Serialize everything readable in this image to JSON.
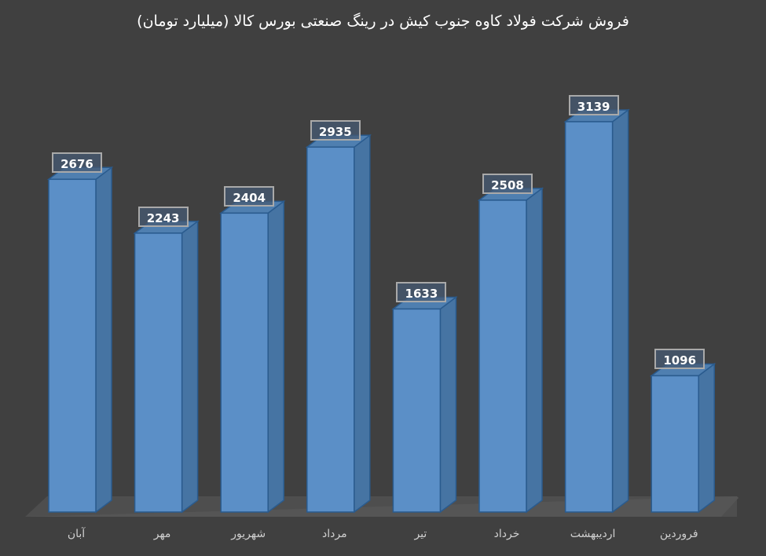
{
  "chart_data": {
    "type": "bar",
    "title": "فروش شرکت فولاد کاوه جنوب کیش در رینگ صنعتی بورس کالا (میلیارد تومان)",
    "xlabel": "",
    "ylabel": "",
    "categories": [
      "آبان",
      "مهر",
      "شهریور",
      "مرداد",
      "تیر",
      "خرداد",
      "اردیبهشت",
      "فروردین"
    ],
    "values": [
      2676,
      2243,
      2404,
      2935,
      1633,
      2508,
      3139,
      1096
    ],
    "data_labels": [
      "2676",
      "2243",
      "2404",
      "2935",
      "1633",
      "2508",
      "3139",
      "1096"
    ],
    "style": "3d-column",
    "grid": false,
    "legend": false,
    "bar_color": "#5b8fc7",
    "background": "#404040"
  },
  "colors": {
    "background": "#404040",
    "floor": "#525252",
    "bar_front": "#5b8fc7",
    "bar_side": "#4674a3",
    "bar_top": "#4f7fb0",
    "bar_edge": "#2a5b8e",
    "label_border": "#a9a9a9",
    "title_text": "#ffffff",
    "axis_text": "#d0d0d0"
  }
}
